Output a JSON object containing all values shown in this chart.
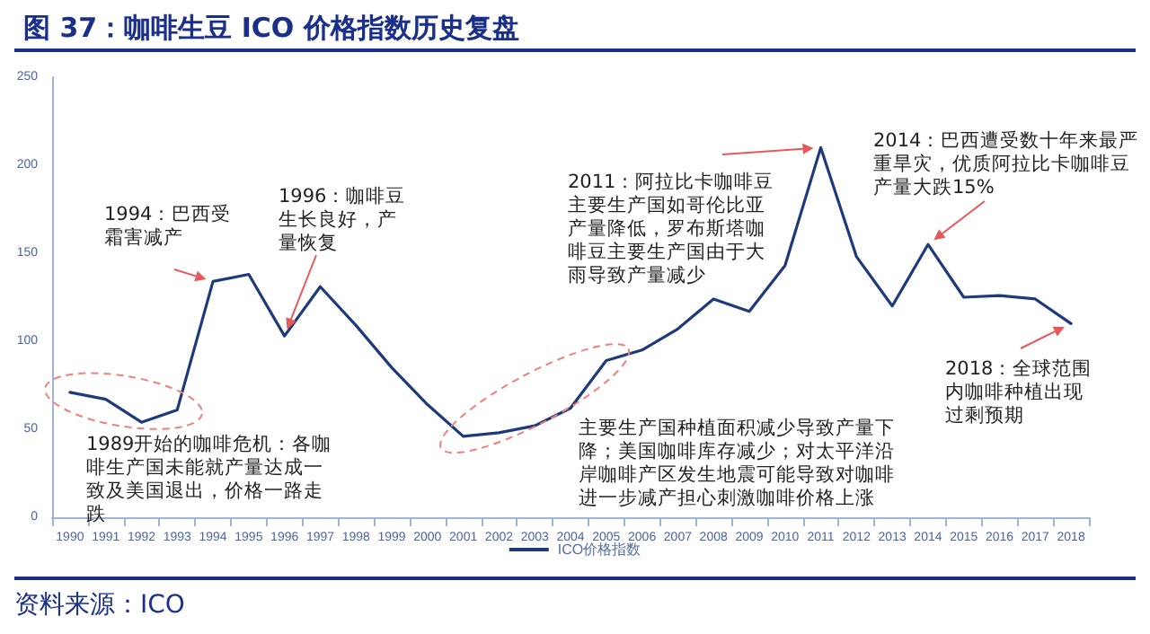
{
  "chart_data": {
    "type": "line",
    "title": "图 37：咖啡生豆 ICO 价格指数历史复盘",
    "categories": [
      "1990",
      "1991",
      "1992",
      "1993",
      "1994",
      "1995",
      "1996",
      "1997",
      "1998",
      "1999",
      "2000",
      "2001",
      "2002",
      "2003",
      "2004",
      "2005",
      "2006",
      "2007",
      "2008",
      "2009",
      "2010",
      "2011",
      "2012",
      "2013",
      "2014",
      "2015",
      "2016",
      "2017",
      "2018"
    ],
    "series": [
      {
        "name": "ICO价格指数",
        "color": "#1f3a7a",
        "values": [
          71,
          67,
          54,
          61,
          134,
          138,
          103,
          131,
          109,
          85,
          64,
          46,
          48,
          52,
          62,
          89,
          95,
          107,
          124,
          117,
          143,
          210,
          148,
          120,
          155,
          125,
          126,
          124,
          110
        ]
      }
    ],
    "ylim": [
      0,
      250
    ],
    "yticks": [
      0,
      50,
      100,
      150,
      200,
      250
    ],
    "grid": false,
    "legend": "bottom",
    "marker": "none",
    "line_style": "solid",
    "annotations": [
      {
        "text": "1994：巴西受霜害减产",
        "x": "1994",
        "y": 134
      },
      {
        "text": "1996：咖啡豆生长良好，产量恢复",
        "x": "1996",
        "y": 103
      },
      "1989开始的咖啡危机：各咖啡生产国未能就产量达成一致及美国退出，价格一路走跌",
      {
        "text": "2011：阿拉比卡咖啡豆主要生产国如哥伦比亚产量降低，罗布斯塔咖啡豆主要生产国由于大雨导致产量减少",
        "x": "2011",
        "y": 210
      },
      "主要生产国种植面积减少导致产量下降；美国咖啡库存减少；对太平洋沿岸咖啡产区发生地震可能导致对咖啡进一步减产担心刺激咖啡价格上涨",
      {
        "text": "2014：巴西遭受数十年来最严重旱灾，优质阿拉比卡咖啡豆产量大跌15%",
        "x": "2014",
        "y": 155
      },
      {
        "text": "2018：全球范围内咖啡种植出现过剩预期",
        "x": "2018",
        "y": 110
      },
      "资料来源：ICO"
    ]
  }
}
